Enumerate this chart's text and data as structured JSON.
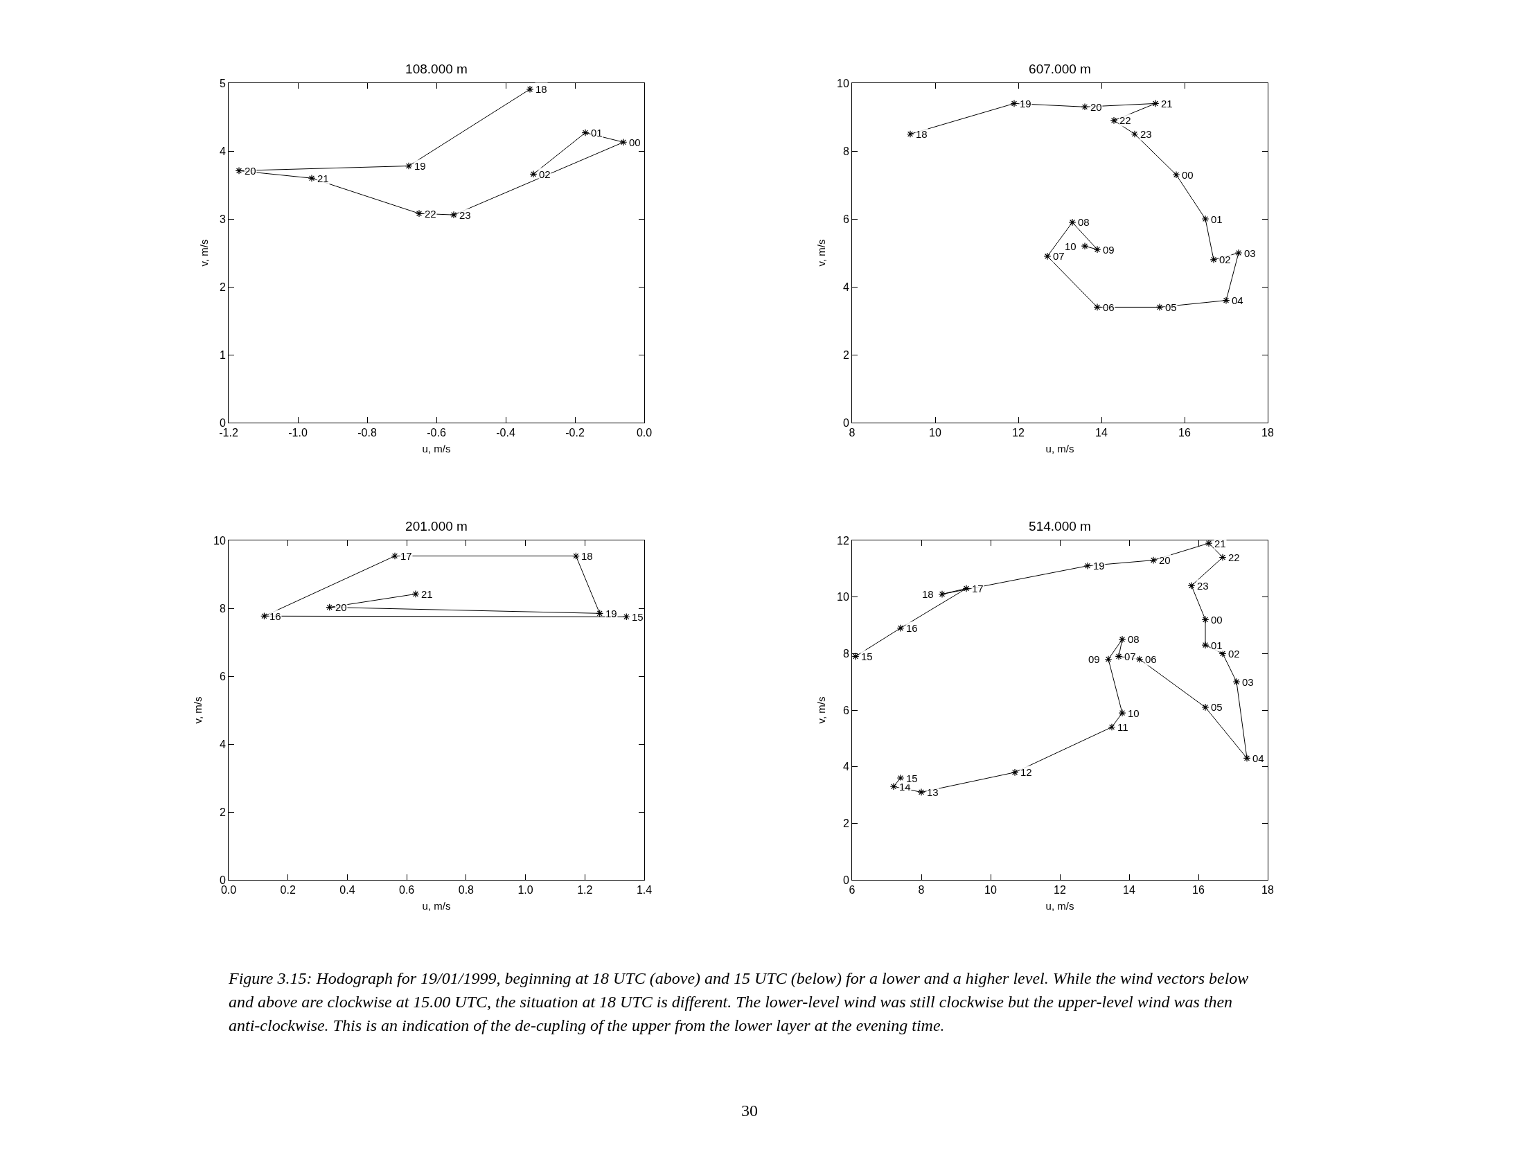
{
  "chart_data": [
    {
      "type": "line",
      "title": "108.000 m",
      "xlabel": "u, m/s",
      "ylabel": "v, m/s",
      "color": "#000000",
      "marker": "cross",
      "x": [
        -0.33,
        -0.68,
        -1.17,
        -0.96,
        -0.65,
        -0.55,
        -0.06,
        -0.17,
        -0.32
      ],
      "values": [
        4.91,
        3.78,
        3.71,
        3.6,
        3.08,
        3.06,
        4.13,
        4.27,
        3.66
      ],
      "xlim": [
        -1.2,
        0
      ],
      "ylim": [
        0,
        5
      ],
      "xticks": [
        {
          "value": -1.2,
          "label": "-1.2"
        },
        {
          "value": -1.0,
          "label": "-1.0"
        },
        {
          "value": -0.8,
          "label": "-0.8"
        },
        {
          "value": -0.6,
          "label": "-0.6"
        },
        {
          "value": -0.4,
          "label": "-0.4"
        },
        {
          "value": -0.2,
          "label": "-0.2"
        },
        {
          "value": 0,
          "label": "0.0"
        }
      ],
      "yticks": [
        0,
        1,
        2,
        3,
        4,
        5
      ],
      "annotations": [
        {
          "text": "18",
          "x": -0.33,
          "y": 4.91
        },
        {
          "text": "19",
          "x": -0.68,
          "y": 3.78
        },
        {
          "text": "20",
          "x": -1.17,
          "y": 3.71
        },
        {
          "text": "21",
          "x": -0.96,
          "y": 3.6
        },
        {
          "text": "22",
          "x": -0.65,
          "y": 3.08
        },
        {
          "text": "23",
          "x": -0.55,
          "y": 3.06
        },
        {
          "text": "00",
          "x": -0.06,
          "y": 4.13
        },
        {
          "text": "01",
          "x": -0.17,
          "y": 4.27
        },
        {
          "text": "02",
          "x": -0.32,
          "y": 3.66
        }
      ]
    },
    {
      "type": "line",
      "title": "607.000 m",
      "xlabel": "u, m/s",
      "ylabel": "v, m/s",
      "color": "#000000",
      "marker": "cross",
      "x": [
        9.4,
        11.9,
        13.6,
        15.3,
        14.3,
        14.8,
        15.8,
        16.5,
        16.7,
        17.3,
        17.0,
        15.4,
        13.9,
        12.7,
        13.3,
        13.9,
        13.6
      ],
      "values": [
        8.5,
        9.4,
        9.3,
        9.4,
        8.9,
        8.5,
        7.3,
        6.0,
        4.8,
        5.0,
        3.6,
        3.4,
        3.4,
        4.9,
        5.9,
        5.1,
        5.2
      ],
      "xlim": [
        8,
        18
      ],
      "ylim": [
        0,
        10
      ],
      "xticks": [
        8,
        10,
        12,
        14,
        16,
        18
      ],
      "yticks": [
        0,
        2,
        4,
        6,
        8,
        10
      ],
      "annotations": [
        {
          "text": "18",
          "x": 9.4,
          "y": 8.5
        },
        {
          "text": "19",
          "x": 11.9,
          "y": 9.4
        },
        {
          "text": "20",
          "x": 13.6,
          "y": 9.3
        },
        {
          "text": "21",
          "x": 15.3,
          "y": 9.4
        },
        {
          "text": "22",
          "x": 14.3,
          "y": 8.9
        },
        {
          "text": "23",
          "x": 14.8,
          "y": 8.5
        },
        {
          "text": "00",
          "x": 15.8,
          "y": 7.3
        },
        {
          "text": "01",
          "x": 16.5,
          "y": 6.0
        },
        {
          "text": "02",
          "x": 16.7,
          "y": 4.8
        },
        {
          "text": "03",
          "x": 17.3,
          "y": 5.0
        },
        {
          "text": "04",
          "x": 17.0,
          "y": 3.6
        },
        {
          "text": "05",
          "x": 15.4,
          "y": 3.4
        },
        {
          "text": "06",
          "x": 13.9,
          "y": 3.4
        },
        {
          "text": "07",
          "x": 12.7,
          "y": 4.9
        },
        {
          "text": "08",
          "x": 13.3,
          "y": 5.9
        },
        {
          "text": "09",
          "x": 13.9,
          "y": 5.1
        },
        {
          "text": "10",
          "x": 13.6,
          "y": 5.2
        }
      ]
    },
    {
      "type": "line",
      "title": "201.000 m",
      "xlabel": "u, m/s",
      "ylabel": "v, m/s",
      "color": "#000000",
      "marker": "cross",
      "x": [
        1.34,
        0.12,
        0.56,
        1.17,
        1.25,
        0.34,
        0.63
      ],
      "values": [
        7.75,
        7.77,
        9.54,
        9.54,
        7.85,
        8.03,
        8.42
      ],
      "xlim": [
        0,
        1.4
      ],
      "ylim": [
        0,
        10
      ],
      "xticks": [
        {
          "value": 0,
          "label": "0.0"
        },
        {
          "value": 0.2,
          "label": "0.2"
        },
        {
          "value": 0.4,
          "label": "0.4"
        },
        {
          "value": 0.6,
          "label": "0.6"
        },
        {
          "value": 0.8,
          "label": "0.8"
        },
        {
          "value": 1.0,
          "label": "1.0"
        },
        {
          "value": 1.2,
          "label": "1.2"
        },
        {
          "value": 1.4,
          "label": "1.4"
        }
      ],
      "yticks": [
        0,
        2,
        4,
        6,
        8,
        10
      ],
      "annotations": [
        {
          "text": "15",
          "x": 1.34,
          "y": 7.75
        },
        {
          "text": "16",
          "x": 0.12,
          "y": 7.77
        },
        {
          "text": "17",
          "x": 0.56,
          "y": 9.54
        },
        {
          "text": "18",
          "x": 1.17,
          "y": 9.54
        },
        {
          "text": "19",
          "x": 1.25,
          "y": 7.85
        },
        {
          "text": "20",
          "x": 0.34,
          "y": 8.03
        },
        {
          "text": "21",
          "x": 0.63,
          "y": 8.42
        }
      ]
    },
    {
      "type": "line",
      "title": "514.000 m",
      "xlabel": "u, m/s",
      "ylabel": "v, m/s",
      "color": "#000000",
      "marker": "cross",
      "x": [
        6.1,
        7.4,
        9.3,
        8.6,
        12.8,
        14.7,
        16.3,
        16.7,
        15.8,
        16.2,
        16.2,
        16.7,
        17.1,
        17.4,
        16.2,
        14.3,
        13.7,
        13.8,
        13.4,
        13.8,
        13.5,
        10.7,
        8.0,
        7.2,
        7.4
      ],
      "values": [
        7.9,
        8.9,
        10.3,
        10.1,
        11.1,
        11.3,
        11.9,
        11.4,
        10.4,
        9.2,
        8.3,
        8.0,
        7.0,
        4.3,
        6.1,
        7.8,
        7.9,
        8.5,
        7.8,
        5.9,
        5.4,
        3.8,
        3.1,
        3.3,
        3.6
      ],
      "xlim": [
        6,
        18
      ],
      "ylim": [
        0,
        12
      ],
      "xticks": [
        6,
        8,
        10,
        12,
        14,
        16,
        18
      ],
      "yticks": [
        0,
        2,
        4,
        6,
        8,
        10,
        12
      ],
      "annotations": [
        {
          "text": "15",
          "x": 6.1,
          "y": 7.9
        },
        {
          "text": "16",
          "x": 7.4,
          "y": 8.9
        },
        {
          "text": "17",
          "x": 9.3,
          "y": 10.3
        },
        {
          "text": "18",
          "x": 8.6,
          "y": 10.1
        },
        {
          "text": "19",
          "x": 12.8,
          "y": 11.1
        },
        {
          "text": "20",
          "x": 14.7,
          "y": 11.3
        },
        {
          "text": "21",
          "x": 16.3,
          "y": 11.9
        },
        {
          "text": "22",
          "x": 16.7,
          "y": 11.4
        },
        {
          "text": "23",
          "x": 15.8,
          "y": 10.4
        },
        {
          "text": "00",
          "x": 16.2,
          "y": 9.2
        },
        {
          "text": "01",
          "x": 16.2,
          "y": 8.3
        },
        {
          "text": "02",
          "x": 16.7,
          "y": 8.0
        },
        {
          "text": "03",
          "x": 17.1,
          "y": 7.0
        },
        {
          "text": "04",
          "x": 17.4,
          "y": 4.3
        },
        {
          "text": "05",
          "x": 16.2,
          "y": 6.1
        },
        {
          "text": "06",
          "x": 14.3,
          "y": 7.8
        },
        {
          "text": "07",
          "x": 13.7,
          "y": 7.9
        },
        {
          "text": "08",
          "x": 13.8,
          "y": 8.5
        },
        {
          "text": "09",
          "x": 13.4,
          "y": 7.8
        },
        {
          "text": "10",
          "x": 13.8,
          "y": 5.9
        },
        {
          "text": "11",
          "x": 13.5,
          "y": 5.4
        },
        {
          "text": "12",
          "x": 10.7,
          "y": 3.8
        },
        {
          "text": "13",
          "x": 8.0,
          "y": 3.1
        },
        {
          "text": "14",
          "x": 7.2,
          "y": 3.3
        },
        {
          "text": "15",
          "x": 7.4,
          "y": 3.6
        },
        "Figure 3.15: Hodograph for 19/01/1999, beginning at 18 UTC (above) and 15 UTC (below) for a lower and a higher level. While the wind vectors below and above are clockwise at 15.00 UTC, the situation at 18 UTC is different.  The lower-level wind was still clockwise but the upper-level wind was then anti-clockwise.  This is an indication of the de-cupling of the upper from the lower layer at the evening time.",
        "30"
      ]
    }
  ]
}
